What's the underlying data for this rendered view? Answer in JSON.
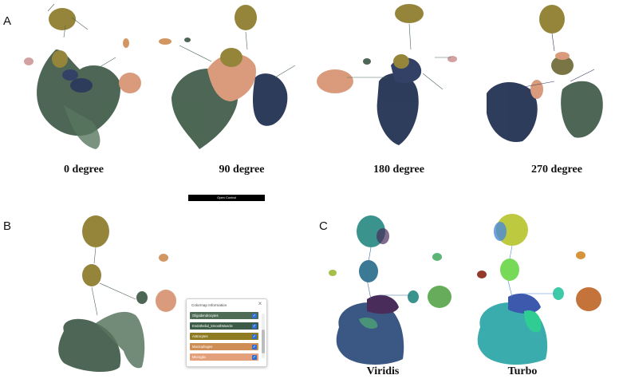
{
  "panels": {
    "a_label": "A",
    "b_label": "B",
    "c_label": "C"
  },
  "rotation_captions": [
    "0 degree",
    "90 degree",
    "180 degree",
    "270 degree"
  ],
  "open_control_label": "Open Control",
  "colormap_box": {
    "title": "Colormap Information",
    "close_glyph": "×",
    "items": [
      {
        "label": "Oligodendrocytes",
        "color": "#4f6b55",
        "checked": true
      },
      {
        "label": "Endothelial_SmoothMuscle",
        "color": "#3d5c47",
        "checked": true
      },
      {
        "label": "Astrocytes",
        "color": "#8f7b22",
        "checked": true
      },
      {
        "label": "Macrophages",
        "color": "#cf8e55",
        "checked": true
      },
      {
        "label": "Microglia",
        "color": "#e4a07a",
        "checked": true
      }
    ],
    "check_glyph": "✓"
  },
  "colormap_captions": [
    "Viridis",
    "Turbo"
  ],
  "palette": {
    "green_dark": "#3e5a47",
    "navy": "#1d2c4f",
    "olive": "#8c7b2a",
    "salmon": "#d79373",
    "teal": "#2b8a84",
    "purple": "#3b1b4e",
    "yellow_green": "#b8c630",
    "orange": "#c0692a"
  }
}
